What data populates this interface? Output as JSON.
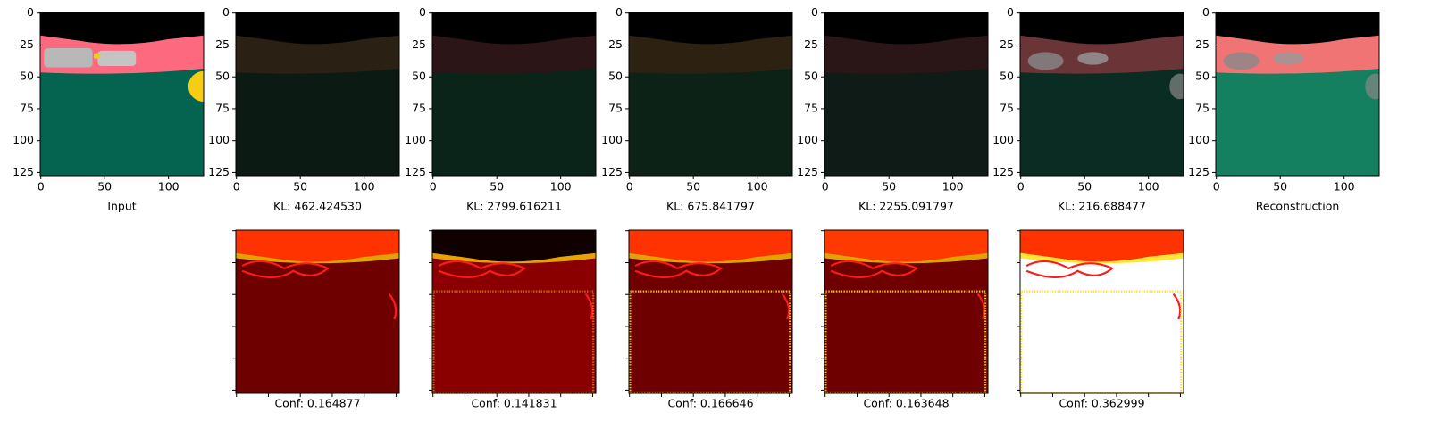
{
  "panels": [
    {
      "label": "Input",
      "xticks": [
        0,
        50,
        100
      ],
      "yticks": [
        0,
        25,
        50,
        75,
        100,
        125
      ]
    },
    {
      "label": "KL: 462.424530",
      "xticks": [
        0,
        50,
        100
      ],
      "yticks": [
        0,
        25,
        50,
        75,
        100,
        125
      ]
    },
    {
      "label": "KL: 2799.616211",
      "xticks": [
        0,
        50,
        100
      ],
      "yticks": [
        0,
        25,
        50,
        75,
        100,
        125
      ]
    },
    {
      "label": "KL: 675.841797",
      "xticks": [
        0,
        50,
        100
      ],
      "yticks": [
        0,
        25,
        50,
        75,
        100,
        125
      ]
    },
    {
      "label": "KL: 2255.091797",
      "xticks": [
        0,
        50,
        100
      ],
      "yticks": [
        0,
        25,
        50,
        75,
        100,
        125
      ]
    },
    {
      "label": "KL: 216.688477",
      "xticks": [
        0,
        50,
        100
      ],
      "yticks": [
        0,
        25,
        50,
        75,
        100,
        125
      ]
    },
    {
      "label": "Reconstruction",
      "xticks": [
        0,
        50,
        100
      ],
      "yticks": [
        0,
        25,
        50,
        75,
        100,
        125
      ]
    }
  ],
  "conf_panels": [
    {
      "label": "Conf: 0.164877"
    },
    {
      "label": "Conf: 0.141831"
    },
    {
      "label": "Conf: 0.166646"
    },
    {
      "label": "Conf: 0.163648"
    },
    {
      "label": "Conf: 0.362999"
    }
  ]
}
